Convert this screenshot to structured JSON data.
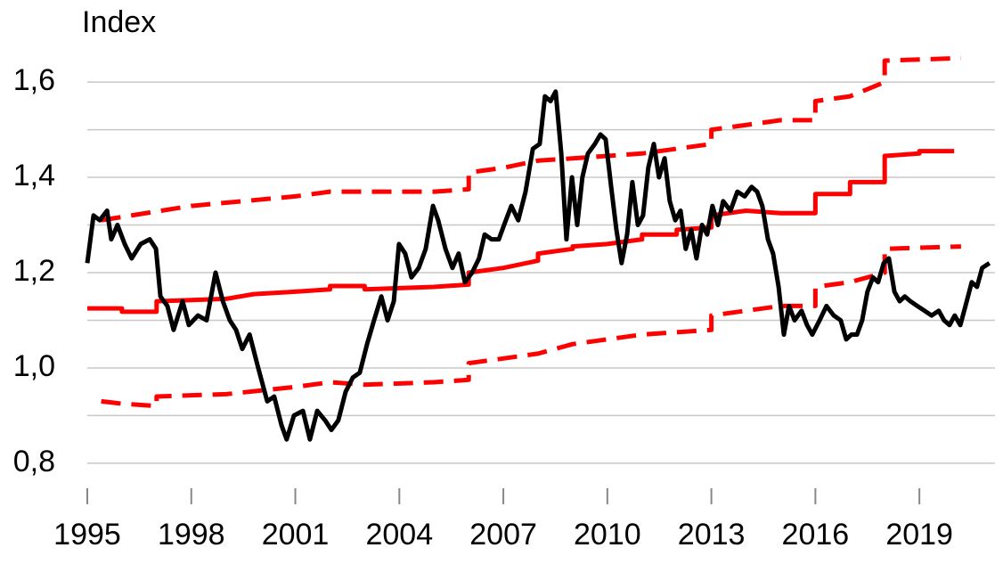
{
  "chart_data": {
    "type": "line",
    "y_label": "Index",
    "xlim": [
      1995,
      2021.18
    ],
    "xticks": [
      1995,
      1998,
      2001,
      2004,
      2007,
      2010,
      2013,
      2016,
      2019
    ],
    "ylim": [
      0.74,
      1.66
    ],
    "yticks": [
      {
        "value": 0.8,
        "label": "0,8"
      },
      {
        "value": 1.0,
        "label": "1,0"
      },
      {
        "value": 1.2,
        "label": "1,2"
      },
      {
        "value": 1.4,
        "label": "1,4"
      },
      {
        "value": 1.6,
        "label": "1,6"
      }
    ],
    "minor_yticks": [
      0.9,
      1.1,
      1.3,
      1.5
    ],
    "grid": true,
    "series": [
      {
        "color": "#000000",
        "dash": false,
        "x": [
          1995.0,
          1995.18,
          1995.36,
          1995.57,
          1995.69,
          1995.87,
          1996.08,
          1996.28,
          1996.54,
          1996.8,
          1996.98,
          1997.11,
          1997.31,
          1997.49,
          1997.75,
          1997.93,
          1998.19,
          1998.44,
          1998.7,
          1998.91,
          1999.11,
          1999.29,
          1999.47,
          1999.68,
          1999.93,
          2000.19,
          2000.39,
          2000.6,
          2000.75,
          2000.96,
          2001.22,
          2001.42,
          2001.63,
          2001.86,
          2002.04,
          2002.24,
          2002.45,
          2002.66,
          2002.86,
          2003.07,
          2003.27,
          2003.48,
          2003.66,
          2003.84,
          2003.99,
          2004.17,
          2004.35,
          2004.56,
          2004.76,
          2004.97,
          2005.12,
          2005.33,
          2005.53,
          2005.71,
          2005.89,
          2006.1,
          2006.3,
          2006.46,
          2006.66,
          2006.87,
          2007.02,
          2007.23,
          2007.43,
          2007.64,
          2007.85,
          2008.05,
          2008.2,
          2008.36,
          2008.51,
          2008.67,
          2008.82,
          2008.98,
          2009.13,
          2009.28,
          2009.44,
          2009.64,
          2009.8,
          2009.95,
          2010.11,
          2010.26,
          2010.41,
          2010.57,
          2010.72,
          2010.88,
          2011.03,
          2011.18,
          2011.34,
          2011.49,
          2011.65,
          2011.8,
          2011.96,
          2012.11,
          2012.26,
          2012.42,
          2012.57,
          2012.73,
          2012.88,
          2013.03,
          2013.19,
          2013.34,
          2013.55,
          2013.75,
          2013.96,
          2014.16,
          2014.32,
          2014.47,
          2014.63,
          2014.78,
          2014.94,
          2015.09,
          2015.24,
          2015.4,
          2015.6,
          2015.76,
          2015.91,
          2016.12,
          2016.32,
          2016.53,
          2016.73,
          2016.89,
          2017.04,
          2017.2,
          2017.35,
          2017.5,
          2017.66,
          2017.81,
          2017.97,
          2018.12,
          2018.28,
          2018.43,
          2018.58,
          2018.74,
          2018.94,
          2019.15,
          2019.35,
          2019.56,
          2019.71,
          2019.87,
          2020.02,
          2020.18,
          2020.33,
          2020.51,
          2020.66,
          2020.81,
          2021.02
        ],
        "values": [
          1.22,
          1.32,
          1.31,
          1.33,
          1.27,
          1.3,
          1.26,
          1.23,
          1.26,
          1.27,
          1.25,
          1.15,
          1.13,
          1.08,
          1.14,
          1.09,
          1.11,
          1.1,
          1.2,
          1.14,
          1.1,
          1.08,
          1.04,
          1.07,
          1.0,
          0.93,
          0.94,
          0.88,
          0.85,
          0.9,
          0.91,
          0.85,
          0.91,
          0.89,
          0.87,
          0.89,
          0.95,
          0.98,
          0.99,
          1.05,
          1.1,
          1.15,
          1.1,
          1.14,
          1.26,
          1.24,
          1.19,
          1.21,
          1.25,
          1.34,
          1.31,
          1.25,
          1.21,
          1.24,
          1.18,
          1.2,
          1.23,
          1.28,
          1.27,
          1.27,
          1.3,
          1.34,
          1.31,
          1.37,
          1.46,
          1.47,
          1.57,
          1.56,
          1.58,
          1.45,
          1.27,
          1.4,
          1.3,
          1.4,
          1.45,
          1.47,
          1.49,
          1.48,
          1.38,
          1.29,
          1.22,
          1.28,
          1.39,
          1.3,
          1.32,
          1.42,
          1.47,
          1.4,
          1.44,
          1.35,
          1.31,
          1.33,
          1.25,
          1.29,
          1.23,
          1.3,
          1.28,
          1.34,
          1.3,
          1.35,
          1.33,
          1.37,
          1.36,
          1.38,
          1.37,
          1.34,
          1.27,
          1.24,
          1.17,
          1.07,
          1.13,
          1.1,
          1.12,
          1.09,
          1.07,
          1.1,
          1.13,
          1.11,
          1.1,
          1.06,
          1.07,
          1.07,
          1.1,
          1.16,
          1.19,
          1.18,
          1.22,
          1.23,
          1.16,
          1.14,
          1.15,
          1.14,
          1.13,
          1.12,
          1.11,
          1.12,
          1.1,
          1.09,
          1.11,
          1.09,
          1.13,
          1.18,
          1.17,
          1.21,
          1.22
        ]
      },
      {
        "color": "#ff0000",
        "dash": false,
        "x": [
          1995.0,
          1996.0,
          1996.0,
          1997.0,
          1997.0,
          1999.0,
          1999.8,
          2001.0,
          2002.0,
          2002.0,
          2003.0,
          2003.0,
          2005.0,
          2006.0,
          2006.0,
          2007.0,
          2008.0,
          2008.0,
          2009.0,
          2009.0,
          2010.0,
          2011.0,
          2011.0,
          2012.0,
          2012.0,
          2013.0,
          2013.0,
          2014.0,
          2015.0,
          2016.0,
          2016.0,
          2017.0,
          2017.0,
          2018.0,
          2018.0,
          2019.0,
          2019.0,
          2020.0
        ],
        "values": [
          1.125,
          1.125,
          1.118,
          1.118,
          1.14,
          1.145,
          1.155,
          1.16,
          1.165,
          1.172,
          1.172,
          1.165,
          1.17,
          1.175,
          1.2,
          1.21,
          1.225,
          1.24,
          1.25,
          1.255,
          1.26,
          1.27,
          1.28,
          1.28,
          1.29,
          1.295,
          1.32,
          1.33,
          1.325,
          1.325,
          1.365,
          1.365,
          1.39,
          1.39,
          1.445,
          1.45,
          1.455,
          1.455
        ]
      },
      {
        "color": "#ff0000",
        "dash": true,
        "x": [
          1995.4,
          1998.0,
          2001.0,
          2002.0,
          2005.0,
          2006.0,
          2006.0,
          2007.0,
          2008.0,
          2009.0,
          2011.0,
          2013.0,
          2013.0,
          2015.0,
          2016.0,
          2016.0,
          2017.0,
          2018.0,
          2018.0,
          2020.2
        ],
        "values": [
          1.31,
          1.34,
          1.36,
          1.37,
          1.37,
          1.375,
          1.41,
          1.42,
          1.435,
          1.44,
          1.45,
          1.47,
          1.5,
          1.52,
          1.52,
          1.56,
          1.57,
          1.6,
          1.645,
          1.65
        ]
      },
      {
        "color": "#ff0000",
        "dash": true,
        "x": [
          1995.4,
          1996.0,
          1997.0,
          1997.0,
          1999.0,
          2001.0,
          2002.0,
          2003.0,
          2005.0,
          2006.0,
          2006.0,
          2007.0,
          2008.0,
          2009.0,
          2011.0,
          2013.0,
          2013.0,
          2015.0,
          2016.0,
          2016.0,
          2017.0,
          2018.0,
          2018.0,
          2020.2
        ],
        "values": [
          0.93,
          0.925,
          0.92,
          0.94,
          0.945,
          0.96,
          0.97,
          0.965,
          0.97,
          0.975,
          1.01,
          1.02,
          1.03,
          1.05,
          1.07,
          1.08,
          1.11,
          1.13,
          1.13,
          1.17,
          1.18,
          1.2,
          1.25,
          1.255
        ]
      }
    ]
  }
}
